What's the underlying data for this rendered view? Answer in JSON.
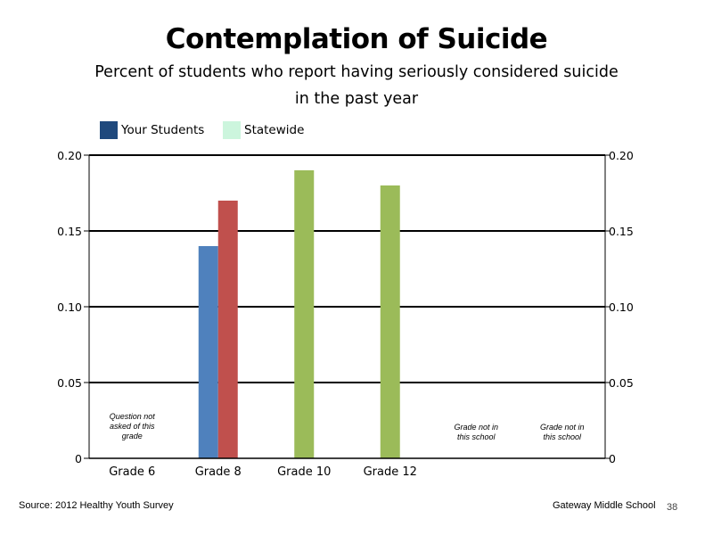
{
  "page": {
    "title": "Contemplation of Suicide",
    "subtitle_line1": "Percent of students who report having seriously considered suicide",
    "subtitle_line2": "in the past year",
    "source": "Source: 2012 Healthy Youth Survey",
    "school": "Gateway Middle  School",
    "page_number": "38"
  },
  "legend": [
    {
      "label": "Your Students",
      "color": "#1f497d"
    },
    {
      "label": "Statewide",
      "color": "#ccf5dd"
    }
  ],
  "chart_data": {
    "type": "bar",
    "categories": [
      "Grade 6",
      "Grade 8",
      "Grade 10",
      "Grade 12",
      "",
      ""
    ],
    "series": [
      {
        "name": "Your Students",
        "values": [
          null,
          0.14,
          null,
          null,
          null,
          null
        ]
      },
      {
        "name": "Statewide",
        "values": [
          null,
          0.17,
          0.19,
          0.18,
          null,
          null
        ]
      }
    ],
    "bar_colors": {
      "Grade 8 Your Students": "#4f81bd",
      "Grade 8 Statewide": "#c0504d",
      "Grade 10 Statewide": "#9bbb59",
      "Grade 12 Statewide": "#9bbb59"
    },
    "y_ticks": [
      "0",
      "0.05",
      "0.10",
      "0.15",
      "0.20"
    ],
    "y_tick_values": [
      0,
      0.05,
      0.1,
      0.15,
      0.2
    ],
    "ylim": [
      0,
      0.2
    ],
    "secondary_axis": true,
    "grid": true,
    "notes": [
      {
        "category_index": 0,
        "lines": [
          "Question not",
          "asked of this",
          "grade"
        ]
      },
      {
        "category_index": 4,
        "lines": [
          "Grade not in",
          "this school"
        ]
      },
      {
        "category_index": 5,
        "lines": [
          "Grade not in",
          "this school"
        ]
      }
    ]
  }
}
